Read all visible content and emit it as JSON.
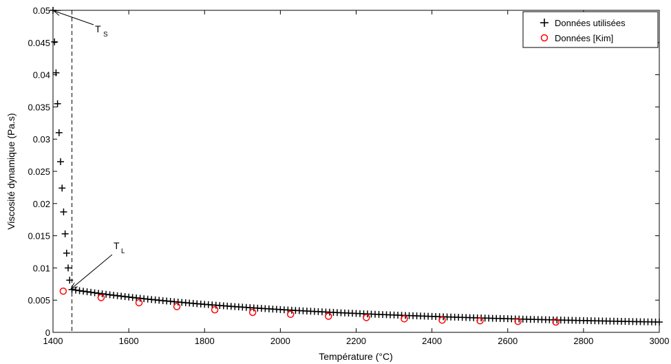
{
  "chart_data": {
    "type": "scatter",
    "xlabel": "Température (°C)",
    "ylabel": "Viscosité dynamique (Pa.s)",
    "xlim": [
      1400,
      3000
    ],
    "ylim": [
      0,
      0.05
    ],
    "x_ticks": [
      "1400",
      "1600",
      "1800",
      "2000",
      "2200",
      "2400",
      "2600",
      "2800",
      "3000"
    ],
    "y_ticks": [
      "0",
      "0.005",
      "0.01",
      "0.015",
      "0.02",
      "0.025",
      "0.03",
      "0.035",
      "0.04",
      "0.045",
      "0.05"
    ],
    "grid": false,
    "legend_position": "top-right",
    "series": [
      {
        "name": "Données utilisées",
        "marker": "plus",
        "color": "#000000",
        "solid_region": {
          "x": [
            1400,
            1404,
            1408,
            1412,
            1416,
            1420,
            1424,
            1428,
            1432,
            1436,
            1440,
            1444
          ],
          "y": [
            0.05,
            0.0451,
            0.0403,
            0.0355,
            0.031,
            0.0265,
            0.0224,
            0.0187,
            0.0153,
            0.0123,
            0.01,
            0.0081
          ]
        },
        "liquid_region": {
          "x_start": 1450,
          "x_end": 3000,
          "x_step": 10,
          "model": "y = 0.006647 * (x/1450)^-1.96"
        }
      },
      {
        "name": "Données [Kim]",
        "marker": "circle",
        "color": "#ff0000",
        "x": [
          1427,
          1527,
          1627,
          1727,
          1827,
          1927,
          2027,
          2127,
          2227,
          2327,
          2427,
          2527,
          2627,
          2727
        ],
        "y": [
          0.0064,
          0.0054,
          0.0046,
          0.004,
          0.0035,
          0.0031,
          0.0028,
          0.0025,
          0.0023,
          0.0021,
          0.0019,
          0.0018,
          0.0017,
          0.0016
        ]
      }
    ],
    "reference_lines": [
      {
        "type": "vertical",
        "style": "dashed",
        "x": 1450
      }
    ],
    "annotations": [
      {
        "main": "T",
        "sub": "S",
        "arrow_to": {
          "x": 1400,
          "y": 0.05
        }
      },
      {
        "main": "T",
        "sub": "L",
        "arrow_to": {
          "x": 1445,
          "y": 0.0069
        }
      }
    ]
  }
}
